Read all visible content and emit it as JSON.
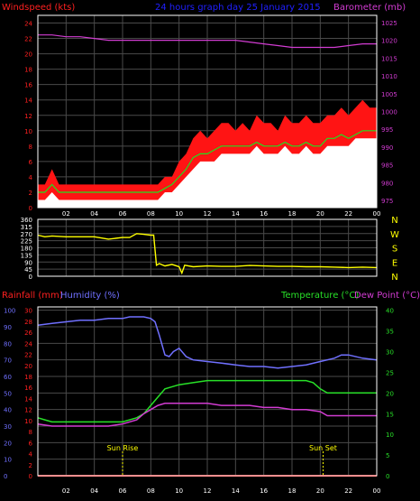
{
  "colors": {
    "background": "#000000",
    "frame": "#ffffff",
    "grid": "#4a4a4a",
    "tick_text": "#ffffff",
    "wind_gust": "#ff1414",
    "wind_avg": "#ffffff",
    "wind_avg_line": "#1ee01e",
    "barometer": "#d23cd2",
    "direction": "#ffff00",
    "rainfall": "#ff2020",
    "humidity": "#7070ff",
    "temperature": "#28e028",
    "dew_point": "#d23cd2",
    "title": "#2020ff",
    "rain_label": "#ff2020",
    "humidity_label": "#7070ff",
    "temp_label": "#28e028",
    "dew_label": "#d23cd2",
    "wind_label": "#ff2020",
    "baro_label": "#d23cd2",
    "sun_marker": "#ffff00"
  },
  "header": {
    "title": "24 hours graph day  25 January 2015"
  },
  "chart_data": [
    {
      "type": "line",
      "name": "wind-barometer-panel",
      "ylabel": "Windspeed (kts)",
      "y2label": "Barometer (mb)",
      "xlim": [
        0,
        24
      ],
      "x_ticks": [
        "02",
        "04",
        "06",
        "08",
        "10",
        "12",
        "14",
        "16",
        "18",
        "20",
        "22",
        "00"
      ],
      "x_tick_values": [
        2,
        4,
        6,
        8,
        10,
        12,
        14,
        16,
        18,
        20,
        22,
        24
      ],
      "ylim": [
        0,
        25
      ],
      "y_ticks": [
        0,
        2,
        4,
        6,
        8,
        10,
        12,
        14,
        16,
        18,
        20,
        22,
        24
      ],
      "y2lim": [
        973,
        1027
      ],
      "y2_ticks": [
        975,
        980,
        985,
        990,
        995,
        1000,
        1005,
        1010,
        1015,
        1020,
        1025
      ],
      "grid": true,
      "series": [
        {
          "key": "gust",
          "axis": "y",
          "style": "area",
          "x": [
            0,
            0.5,
            1,
            1.5,
            2,
            2.5,
            3,
            3.5,
            4,
            4.5,
            5,
            5.5,
            6,
            6.5,
            7,
            7.5,
            8,
            8.5,
            9,
            9.5,
            10,
            10.5,
            11,
            11.5,
            12,
            12.5,
            13,
            13.5,
            14,
            14.5,
            15,
            15.5,
            16,
            16.5,
            17,
            17.5,
            18,
            18.5,
            19,
            19.5,
            20,
            20.5,
            21,
            21.5,
            22,
            22.5,
            23,
            23.5,
            24
          ],
          "values": [
            3,
            3,
            5,
            3,
            3,
            3,
            3,
            3,
            3,
            3,
            3,
            3,
            3,
            3,
            3,
            3,
            3,
            3,
            4,
            4,
            6,
            7,
            9,
            10,
            9,
            10,
            11,
            11,
            10,
            11,
            10,
            12,
            11,
            11,
            10,
            12,
            11,
            11,
            12,
            11,
            11,
            12,
            12,
            13,
            12,
            13,
            14,
            13,
            13
          ]
        },
        {
          "key": "avg",
          "axis": "y",
          "style": "area",
          "x": [
            0,
            0.5,
            1,
            1.5,
            2,
            2.5,
            3,
            3.5,
            4,
            4.5,
            5,
            5.5,
            6,
            6.5,
            7,
            7.5,
            8,
            8.5,
            9,
            9.5,
            10,
            10.5,
            11,
            11.5,
            12,
            12.5,
            13,
            13.5,
            14,
            14.5,
            15,
            15.5,
            16,
            16.5,
            17,
            17.5,
            18,
            18.5,
            19,
            19.5,
            20,
            20.5,
            21,
            21.5,
            22,
            22.5,
            23,
            23.5,
            24
          ],
          "values": [
            1,
            1,
            2,
            1,
            1,
            1,
            1,
            1,
            1,
            1,
            1,
            1,
            1,
            1,
            1,
            1,
            1,
            1,
            2,
            2,
            3,
            4,
            5,
            6,
            6,
            6,
            7,
            7,
            7,
            7,
            7,
            8,
            7,
            7,
            7,
            8,
            7,
            7,
            8,
            7,
            7,
            8,
            8,
            8,
            8,
            9,
            9,
            9,
            9
          ]
        },
        {
          "key": "avg_line",
          "axis": "y",
          "style": "line",
          "x": [
            0,
            0.5,
            1,
            1.5,
            2,
            2.5,
            3,
            3.5,
            4,
            4.5,
            5,
            5.5,
            6,
            6.5,
            7,
            7.5,
            8,
            8.5,
            9,
            9.5,
            10,
            10.5,
            11,
            11.5,
            12,
            12.5,
            13,
            13.5,
            14,
            14.5,
            15,
            15.5,
            16,
            16.5,
            17,
            17.5,
            18,
            18.5,
            19,
            19.5,
            20,
            20.5,
            21,
            21.5,
            22,
            22.5,
            23,
            23.5,
            24
          ],
          "values": [
            2,
            2,
            3,
            2,
            2,
            2,
            2,
            2,
            2,
            2,
            2,
            2,
            2,
            2,
            2,
            2,
            2,
            2,
            2.5,
            3,
            4,
            5,
            6.5,
            7,
            7,
            7.5,
            8,
            8,
            8,
            8,
            8,
            8.5,
            8,
            8,
            8,
            8.5,
            8,
            8,
            8.5,
            8,
            8,
            9,
            9,
            9.5,
            9,
            9.5,
            10,
            10,
            10
          ]
        },
        {
          "key": "barometer",
          "axis": "y2",
          "style": "line",
          "x": [
            0,
            1,
            2,
            3,
            4,
            5,
            6,
            7,
            8,
            9,
            10,
            11,
            12,
            13,
            14,
            15,
            16,
            17,
            18,
            19,
            20,
            21,
            22,
            23,
            24
          ],
          "values": [
            1021.5,
            1021.5,
            1021,
            1021,
            1020.5,
            1020,
            1020,
            1020,
            1020,
            1020,
            1020,
            1020,
            1020,
            1020,
            1020,
            1019.5,
            1019,
            1018.5,
            1018,
            1018,
            1018,
            1018,
            1018.5,
            1019,
            1019
          ]
        }
      ]
    },
    {
      "type": "line",
      "name": "direction-panel",
      "xlim": [
        0,
        24
      ],
      "ylim": [
        0,
        360
      ],
      "y_ticks": [
        0,
        45,
        90,
        135,
        180,
        225,
        270,
        315,
        360
      ],
      "y_tick_labels": [
        "0",
        "45",
        "90",
        "135",
        "180",
        "225",
        "270",
        "315",
        "360"
      ],
      "compass_labels": [
        "N",
        "W",
        "S",
        "E",
        "N"
      ],
      "grid": true,
      "series": [
        {
          "key": "direction",
          "x": [
            0,
            0.5,
            1,
            2,
            3,
            4,
            5,
            6,
            6.5,
            7,
            7.5,
            8,
            8.2,
            8.4,
            8.6,
            9,
            9.5,
            10,
            10.2,
            10.4,
            11,
            12,
            13,
            14,
            15,
            16,
            17,
            18,
            19,
            20,
            21,
            22,
            23,
            24
          ],
          "values": [
            260,
            250,
            255,
            250,
            250,
            250,
            235,
            245,
            245,
            270,
            265,
            260,
            260,
            70,
            80,
            65,
            75,
            60,
            20,
            70,
            60,
            65,
            62,
            62,
            68,
            65,
            62,
            62,
            60,
            60,
            58,
            55,
            58,
            55
          ]
        }
      ]
    },
    {
      "type": "line",
      "name": "temp-humidity-panel",
      "xlim": [
        0,
        24
      ],
      "y_left_outer_label": "Rainfall (mm)",
      "y_left_inner_label": "Humidity (%)",
      "y_right_label": "Temperature (°C)",
      "y_right2_label": "Dew Point (°C)",
      "humidity_ticks": [
        0,
        10,
        20,
        30,
        40,
        50,
        60,
        70,
        80,
        90,
        100
      ],
      "rain_ticks": [
        0,
        2,
        4,
        6,
        8,
        10,
        12,
        14,
        16,
        18,
        20,
        22,
        24,
        26,
        28,
        30
      ],
      "temp_ticks": [
        0,
        5,
        10,
        15,
        20,
        25,
        30,
        35,
        40
      ],
      "annotations": [
        {
          "x": 6.0,
          "label": "Sun Rise"
        },
        {
          "x": 20.2,
          "label": "Sun Set"
        }
      ],
      "grid": true,
      "series": [
        {
          "key": "humidity",
          "axis": "humidity",
          "x": [
            0,
            1,
            2,
            3,
            4,
            5,
            6,
            6.5,
            7,
            7.5,
            8,
            8.3,
            8.6,
            9,
            9.3,
            9.6,
            10,
            10.5,
            11,
            12,
            13,
            14,
            15,
            16,
            17,
            18,
            19,
            20,
            21,
            21.5,
            22,
            23,
            24
          ],
          "values": [
            91,
            92,
            93,
            94,
            94,
            95,
            95,
            96,
            96,
            96,
            95,
            93,
            85,
            73,
            72,
            75,
            77,
            72,
            70,
            69,
            68,
            67,
            66,
            66,
            65,
            66,
            67,
            69,
            71,
            73,
            73,
            71,
            70
          ]
        },
        {
          "key": "temperature",
          "axis": "temp",
          "x": [
            0,
            0.5,
            1,
            2,
            3,
            4,
            5,
            6,
            7,
            7.5,
            8,
            8.5,
            9,
            10,
            11,
            12,
            13,
            14,
            15,
            16,
            17,
            18,
            19,
            19.5,
            20,
            20.5,
            21,
            22,
            23,
            24
          ],
          "values": [
            14,
            13.5,
            13,
            13,
            13,
            13,
            13,
            13,
            14,
            15,
            17,
            19,
            21,
            22,
            22.5,
            23,
            23,
            23,
            23,
            23,
            23,
            23,
            23,
            22.5,
            21,
            20,
            20,
            20,
            20,
            20
          ]
        },
        {
          "key": "dewpoint",
          "axis": "temp",
          "x": [
            0,
            1,
            2,
            3,
            4,
            5,
            6,
            7,
            7.5,
            8,
            8.5,
            9,
            10,
            11,
            12,
            13,
            14,
            15,
            16,
            17,
            18,
            19,
            20,
            20.5,
            21,
            22,
            23,
            24
          ],
          "values": [
            12.5,
            12,
            12,
            12,
            12,
            12,
            12.5,
            13.5,
            15,
            16,
            17,
            17.5,
            17.5,
            17.5,
            17.5,
            17,
            17,
            17,
            16.5,
            16.5,
            16,
            16,
            15.5,
            14.5,
            14.5,
            14.5,
            14.5,
            14.5
          ]
        },
        {
          "key": "rainfall",
          "axis": "rain",
          "x": [
            0,
            24
          ],
          "values": [
            0,
            0
          ]
        }
      ]
    }
  ]
}
